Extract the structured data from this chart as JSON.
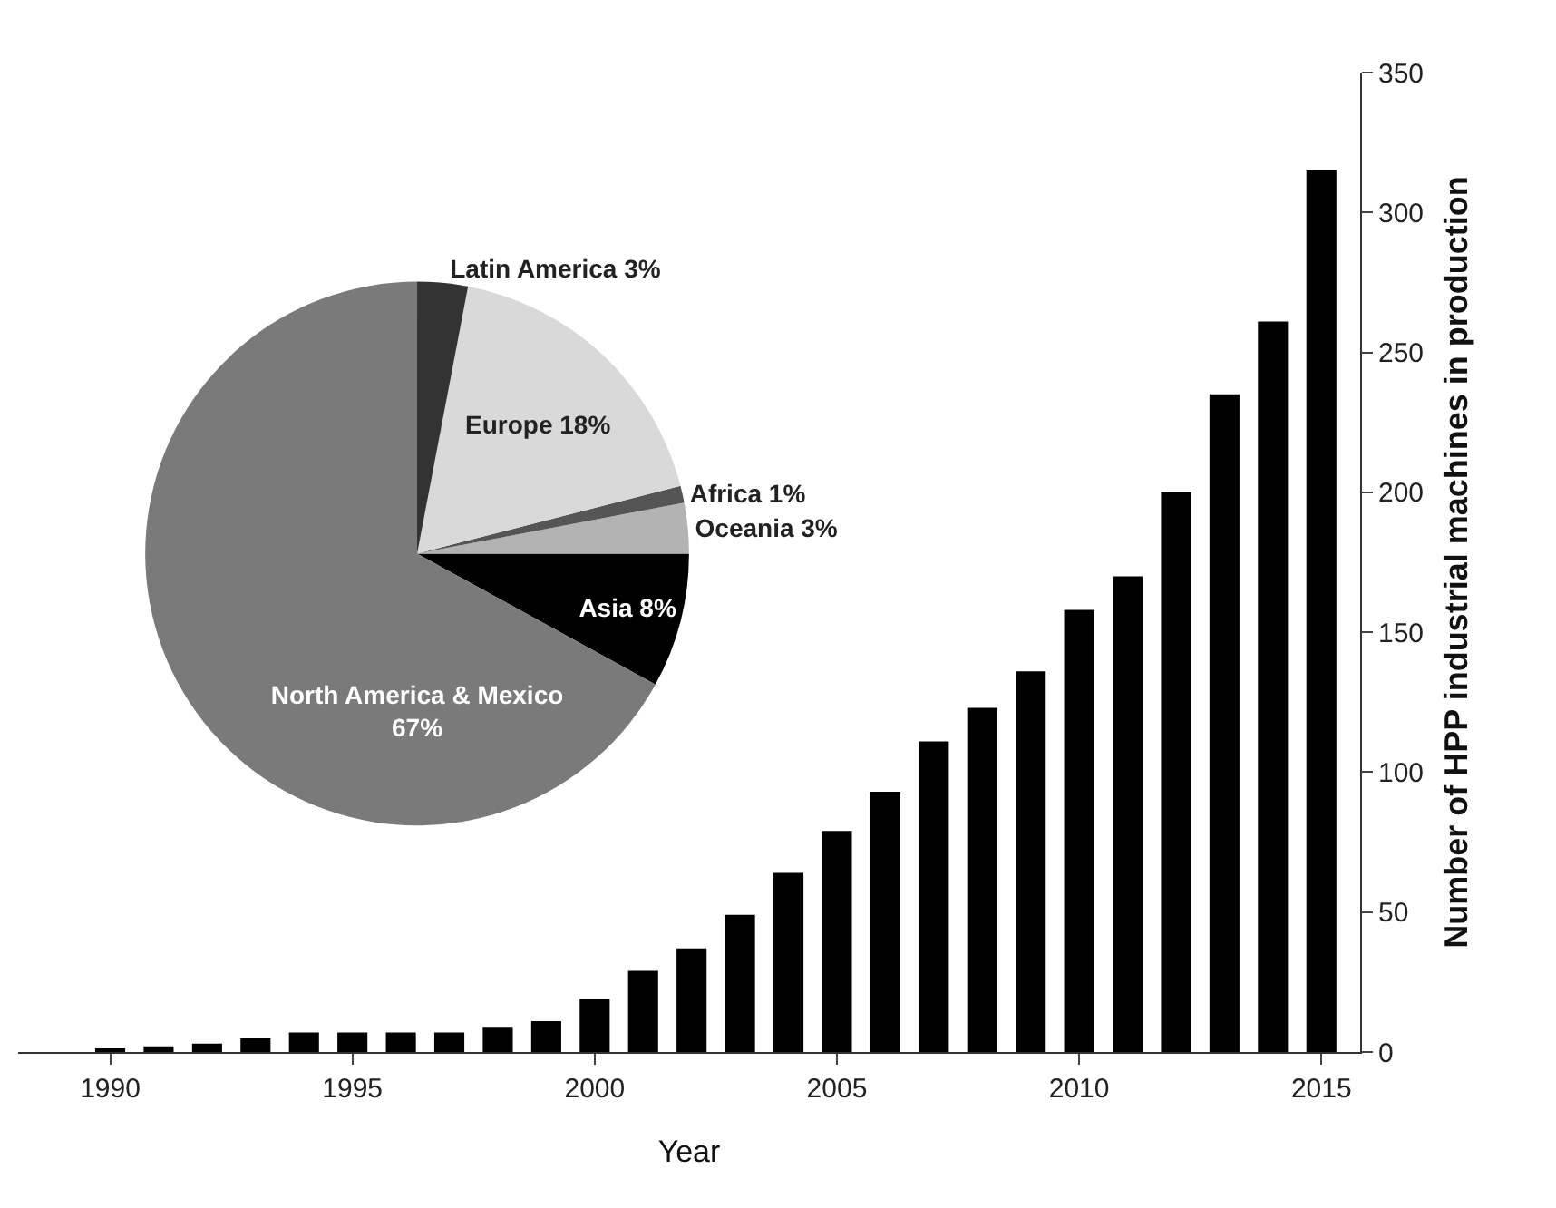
{
  "chart_data": [
    {
      "type": "bar",
      "xlabel": "Year",
      "ylabel": "Number of HPP industrial machines in production",
      "x": [
        1990,
        1991,
        1992,
        1993,
        1994,
        1995,
        1996,
        1997,
        1998,
        1999,
        2000,
        2001,
        2002,
        2003,
        2004,
        2005,
        2006,
        2007,
        2008,
        2009,
        2010,
        2011,
        2012,
        2013,
        2014,
        2015
      ],
      "values": [
        1,
        2,
        3,
        5,
        7,
        7,
        7,
        7,
        9,
        11,
        19,
        29,
        37,
        49,
        64,
        79,
        93,
        111,
        123,
        136,
        158,
        170,
        200,
        235,
        261,
        315
      ],
      "color": "#000000",
      "xlim": [
        1988.1,
        2015.8
      ],
      "xticks": [
        1990,
        1995,
        2000,
        2005,
        2010,
        2015
      ],
      "ylim": [
        0,
        350
      ],
      "yticks": [
        0,
        50,
        100,
        150,
        200,
        250,
        300,
        350
      ],
      "grid": false
    },
    {
      "type": "pie",
      "categories": [
        "Asia",
        "Oceania",
        "Africa",
        "Europe",
        "Latin America",
        "North America & Mexico"
      ],
      "values": [
        8,
        3,
        1,
        18,
        3,
        67
      ],
      "value_labels": [
        "8%",
        "3%",
        "1%",
        "18%",
        "3%",
        "67%"
      ],
      "colors": [
        "#000000",
        "#b3b3b3",
        "#555555",
        "#d9d9d9",
        "#333333",
        "#7a7a7a"
      ]
    }
  ]
}
